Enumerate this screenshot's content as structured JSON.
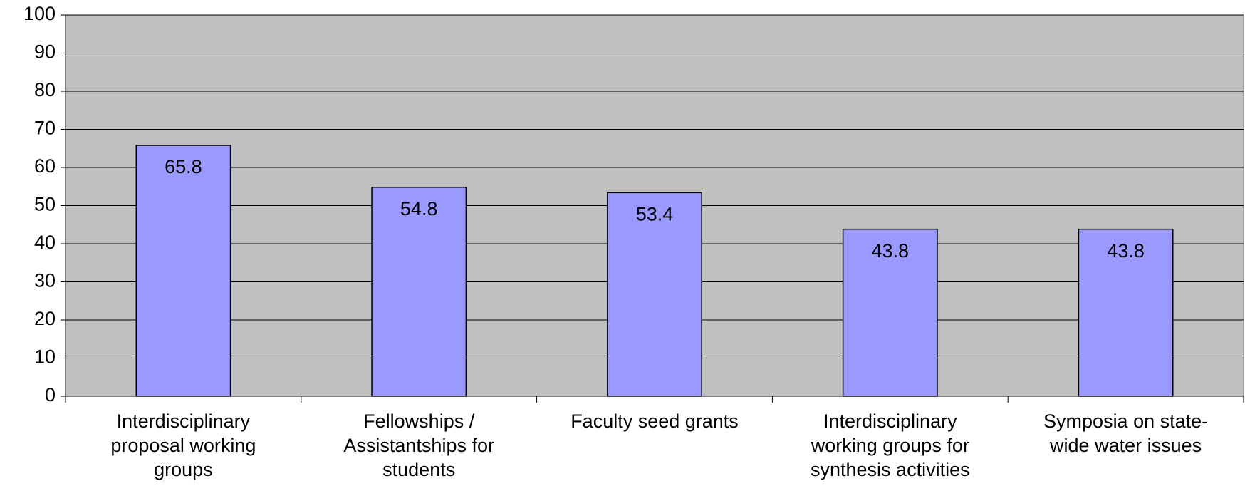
{
  "chart_data": {
    "type": "bar",
    "categories": [
      "Interdisciplinary proposal working groups",
      "Fellowships / Assistantships for students",
      "Faculty seed grants",
      "Interdisciplinary working groups for synthesis activities",
      "Symposia on state-wide water issues"
    ],
    "values": [
      65.8,
      54.8,
      53.4,
      43.8,
      43.8
    ],
    "color": "#9999ff",
    "ylim": [
      0,
      100
    ],
    "yticks": [
      0,
      10,
      20,
      30,
      40,
      50,
      60,
      70,
      80,
      90,
      100
    ],
    "grid": true
  }
}
